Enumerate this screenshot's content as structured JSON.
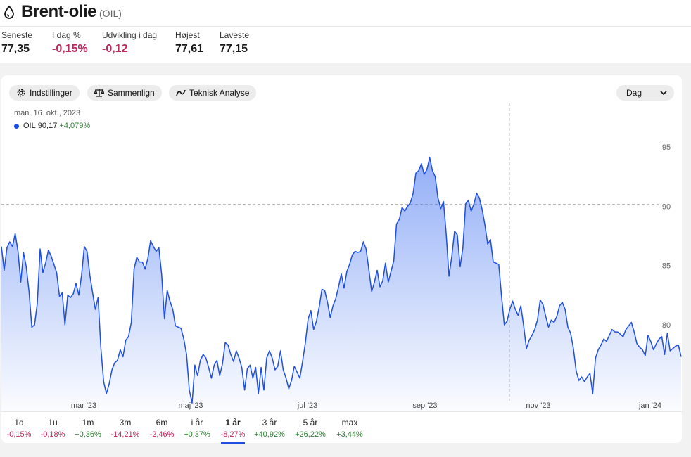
{
  "header": {
    "title": "Brent-olie",
    "ticker": "(OIL)",
    "stats": [
      {
        "label": "Seneste",
        "value": "77,35",
        "tone": "neutral"
      },
      {
        "label": "I dag %",
        "value": "-0,15%",
        "tone": "neg"
      },
      {
        "label": "Udvikling i dag",
        "value": "-0,12",
        "tone": "neg"
      },
      {
        "label": "Højest",
        "value": "77,61",
        "tone": "neutral"
      },
      {
        "label": "Laveste",
        "value": "77,15",
        "tone": "neutral"
      }
    ]
  },
  "toolbar": {
    "settings_label": "Indstillinger",
    "compare_label": "Sammenlign",
    "technical_label": "Teknisk Analyse",
    "interval_label": "Dag",
    "icons": [
      "gear-icon",
      "scale-icon",
      "trend-icon",
      "chevron-down-icon"
    ]
  },
  "hover": {
    "date": "man. 16. okt., 2023",
    "series": "OIL",
    "value": "90,17",
    "change": "+4,079%"
  },
  "chart_data": {
    "type": "area",
    "x_ticks": [
      "mar '23",
      "maj '23",
      "jul '23",
      "sep '23",
      "nov '23",
      "jan '24"
    ],
    "y_ticks": [
      80,
      85,
      90,
      95
    ],
    "ylim": [
      72.7,
      97.5
    ],
    "hover_value": 90.17,
    "series": [
      {
        "values": [
          86.6,
          84.6,
          86.5,
          87.0,
          86.6,
          87.7,
          86.2,
          83.6,
          86.1,
          84.9,
          82.8,
          79.8,
          80.0,
          81.8,
          86.4,
          84.4,
          85.2,
          86.3,
          85.8,
          85.1,
          84.4,
          82.4,
          82.7,
          80.0,
          82.5,
          82.3,
          82.6,
          83.5,
          82.5,
          84.2,
          86.6,
          86.2,
          84.2,
          82.7,
          81.3,
          82.3,
          78.0,
          75.2,
          74.2,
          75.0,
          76.2,
          76.8,
          77.0,
          77.9,
          77.3,
          78.7,
          79.0,
          80.2,
          84.7,
          85.7,
          85.3,
          85.3,
          84.7,
          85.6,
          87.1,
          86.6,
          86.2,
          86.5,
          84.2,
          80.5,
          82.9,
          82.0,
          81.3,
          79.9,
          79.8,
          79.7,
          78.8,
          77.5,
          74.5,
          73.4,
          76.6,
          75.7,
          77.0,
          77.5,
          77.2,
          76.4,
          75.5,
          76.6,
          77.0,
          75.7,
          76.7,
          78.5,
          78.3,
          77.5,
          76.9,
          77.8,
          77.2,
          76.4,
          74.5,
          76.3,
          76.6,
          75.5,
          76.4,
          74.2,
          76.4,
          74.5,
          77.2,
          77.8,
          77.2,
          76.2,
          76.5,
          77.8,
          76.2,
          75.5,
          74.6,
          75.3,
          76.5,
          76.0,
          75.5,
          76.9,
          78.5,
          80.5,
          81.2,
          79.6,
          80.3,
          81.5,
          83.0,
          82.9,
          81.9,
          80.6,
          81.6,
          82.2,
          83.2,
          84.3,
          83.1,
          84.5,
          85.1,
          85.9,
          86.2,
          86.1,
          86.2,
          87.0,
          86.4,
          84.6,
          82.8,
          83.6,
          84.6,
          83.2,
          83.7,
          85.2,
          83.6,
          84.5,
          85.4,
          88.5,
          88.9,
          89.9,
          89.6,
          90.0,
          90.3,
          91.1,
          92.8,
          93.0,
          93.6,
          92.7,
          93.1,
          94.1,
          93.0,
          92.5,
          90.7,
          89.8,
          90.4,
          87.6,
          84.1,
          85.8,
          87.9,
          87.6,
          84.9,
          86.5,
          90.2,
          90.5,
          89.6,
          90.2,
          91.1,
          90.7,
          89.7,
          88.4,
          86.8,
          87.2,
          85.3,
          85.2,
          85.1,
          82.4,
          80.0,
          80.3,
          81.3,
          82.0,
          81.3,
          80.8,
          81.6,
          79.9,
          78.0,
          78.7,
          79.1,
          79.6,
          80.4,
          82.1,
          81.7,
          80.7,
          79.8,
          80.4,
          80.2,
          80.7,
          81.6,
          81.9,
          81.3,
          79.8,
          79.3,
          78.0,
          76.1,
          75.3,
          75.6,
          75.2,
          75.6,
          75.9,
          74.2,
          77.2,
          77.9,
          78.3,
          78.8,
          78.6,
          79.1,
          79.6,
          79.4,
          79.4,
          79.2,
          79.0,
          79.6,
          79.9,
          80.2,
          79.4,
          78.4,
          78.1,
          77.9,
          77.4,
          79.1,
          78.6,
          77.9,
          78.4,
          78.8,
          79.0,
          77.5,
          79.3,
          77.8,
          78.0,
          78.2,
          78.3,
          77.3
        ]
      }
    ]
  },
  "ranges": [
    {
      "label": "1d",
      "change": "-0,15%",
      "tone": "neg"
    },
    {
      "label": "1u",
      "change": "-0,18%",
      "tone": "neg"
    },
    {
      "label": "1m",
      "change": "+0,36%",
      "tone": "pos"
    },
    {
      "label": "3m",
      "change": "-14,21%",
      "tone": "neg"
    },
    {
      "label": "6m",
      "change": "-2,46%",
      "tone": "neg"
    },
    {
      "label": "i år",
      "change": "+0,37%",
      "tone": "pos"
    },
    {
      "label": "1 år",
      "change": "-8,27%",
      "tone": "neg",
      "active": true
    },
    {
      "label": "3 år",
      "change": "+40,92%",
      "tone": "pos"
    },
    {
      "label": "5 år",
      "change": "+26,22%",
      "tone": "pos"
    },
    {
      "label": "max",
      "change": "+3,44%",
      "tone": "pos"
    }
  ],
  "colors": {
    "line": "#1f4fe0",
    "negative": "#c0245b",
    "positive": "#2e7d32"
  }
}
